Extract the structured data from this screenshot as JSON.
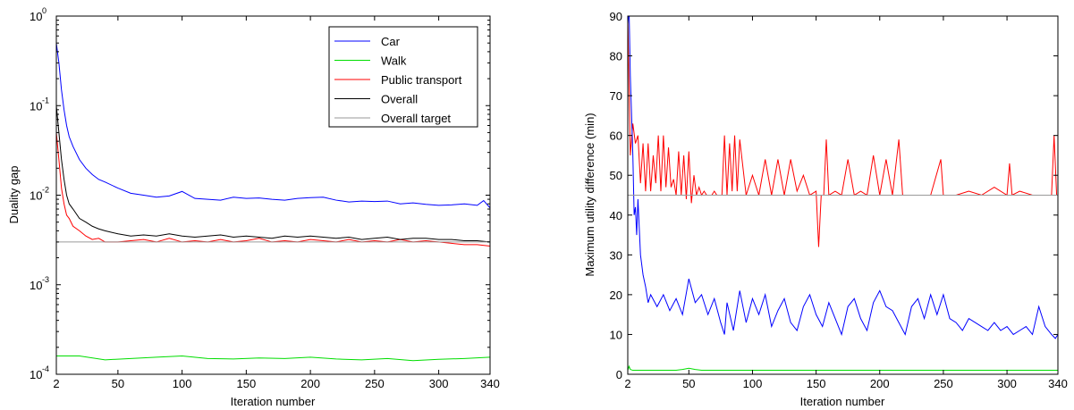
{
  "chart_data": [
    {
      "type": "line",
      "xlabel": "Iteration number",
      "ylabel": "Duality gap",
      "xlim": [
        2,
        340
      ],
      "ylim": [
        0.0001,
        1
      ],
      "yscale": "log",
      "xticks": [
        2,
        50,
        100,
        150,
        200,
        250,
        300,
        340
      ],
      "xtick_labels": [
        "2",
        "50",
        "100",
        "150",
        "200",
        "250",
        "300",
        "340"
      ],
      "yticks": [
        0.0001,
        0.001,
        0.01,
        0.1,
        1
      ],
      "ytick_labels": [
        "10",
        "10",
        "10",
        "10",
        "10"
      ],
      "ytick_exponents": [
        "-4",
        "-3",
        "-2",
        "-1",
        "0"
      ],
      "grid": false,
      "legend_position": "top-right",
      "series": [
        {
          "name": "Car",
          "color": "#0000ff",
          "x": [
            2,
            4,
            6,
            8,
            10,
            12,
            15,
            20,
            25,
            30,
            35,
            40,
            50,
            60,
            70,
            80,
            90,
            100,
            110,
            120,
            130,
            140,
            150,
            160,
            170,
            180,
            190,
            200,
            210,
            220,
            230,
            240,
            250,
            260,
            270,
            280,
            290,
            300,
            310,
            320,
            330,
            335,
            340
          ],
          "y": [
            0.5,
            0.3,
            0.15,
            0.09,
            0.06,
            0.045,
            0.035,
            0.025,
            0.02,
            0.017,
            0.015,
            0.014,
            0.012,
            0.0105,
            0.01,
            0.0095,
            0.0098,
            0.011,
            0.0092,
            0.009,
            0.0088,
            0.0095,
            0.0092,
            0.0093,
            0.009,
            0.0088,
            0.0092,
            0.0094,
            0.0095,
            0.0088,
            0.0084,
            0.0086,
            0.0085,
            0.0086,
            0.008,
            0.0082,
            0.0079,
            0.0077,
            0.0078,
            0.008,
            0.0077,
            0.0087,
            0.0072
          ]
        },
        {
          "name": "Walk",
          "color": "#00dd00",
          "x": [
            2,
            20,
            40,
            60,
            80,
            100,
            120,
            140,
            160,
            180,
            200,
            220,
            240,
            260,
            280,
            300,
            320,
            340
          ],
          "y": [
            0.00016,
            0.00016,
            0.000145,
            0.00015,
            0.000155,
            0.00016,
            0.00015,
            0.000148,
            0.000152,
            0.00015,
            0.000155,
            0.000148,
            0.000145,
            0.00015,
            0.000142,
            0.000147,
            0.00015,
            0.000155
          ]
        },
        {
          "name": "Public transport",
          "color": "#ff0000",
          "x": [
            2,
            4,
            6,
            8,
            10,
            12,
            15,
            20,
            25,
            30,
            35,
            40,
            50,
            60,
            70,
            80,
            90,
            100,
            110,
            120,
            130,
            140,
            150,
            160,
            170,
            180,
            190,
            200,
            210,
            220,
            230,
            240,
            250,
            260,
            270,
            280,
            290,
            300,
            310,
            320,
            330,
            340
          ],
          "y": [
            0.05,
            0.025,
            0.012,
            0.008,
            0.006,
            0.0055,
            0.0045,
            0.004,
            0.0035,
            0.0032,
            0.0033,
            0.003,
            0.003,
            0.0031,
            0.0032,
            0.003,
            0.0033,
            0.003,
            0.0031,
            0.003,
            0.0032,
            0.003,
            0.0031,
            0.0033,
            0.003,
            0.0031,
            0.003,
            0.0032,
            0.0031,
            0.003,
            0.0032,
            0.003,
            0.0031,
            0.003,
            0.0032,
            0.003,
            0.0031,
            0.003,
            0.0029,
            0.0028,
            0.0028,
            0.0027
          ]
        },
        {
          "name": "Overall",
          "color": "#000000",
          "x": [
            2,
            4,
            6,
            8,
            10,
            12,
            15,
            20,
            25,
            30,
            35,
            40,
            50,
            60,
            70,
            80,
            90,
            100,
            110,
            120,
            130,
            140,
            150,
            160,
            170,
            180,
            190,
            200,
            210,
            220,
            230,
            240,
            250,
            260,
            270,
            280,
            290,
            300,
            310,
            320,
            330,
            340
          ],
          "y": [
            0.1,
            0.05,
            0.025,
            0.015,
            0.01,
            0.008,
            0.007,
            0.0055,
            0.005,
            0.0045,
            0.0042,
            0.004,
            0.0037,
            0.0035,
            0.0036,
            0.0035,
            0.0037,
            0.0035,
            0.0034,
            0.0035,
            0.0036,
            0.0034,
            0.0035,
            0.0034,
            0.0033,
            0.0035,
            0.0034,
            0.0035,
            0.0034,
            0.0033,
            0.0034,
            0.0032,
            0.0033,
            0.0034,
            0.0032,
            0.0033,
            0.0033,
            0.0032,
            0.0032,
            0.0031,
            0.0031,
            0.003
          ]
        },
        {
          "name": "Overall target",
          "color": "#9a9a9a",
          "x": [
            2,
            340
          ],
          "y": [
            0.003,
            0.003
          ]
        }
      ]
    },
    {
      "type": "line",
      "xlabel": "Iteration number",
      "ylabel": "Maximum utility difference (min)",
      "xlim": [
        2,
        340
      ],
      "ylim": [
        0,
        90
      ],
      "xticks": [
        2,
        50,
        100,
        150,
        200,
        250,
        300,
        340
      ],
      "xtick_labels": [
        "2",
        "50",
        "100",
        "150",
        "200",
        "250",
        "300",
        "340"
      ],
      "yticks": [
        0,
        10,
        20,
        30,
        40,
        50,
        60,
        70,
        80,
        90
      ],
      "ytick_labels": [
        "0",
        "10",
        "20",
        "30",
        "40",
        "50",
        "60",
        "70",
        "80",
        "90"
      ],
      "grid": false,
      "series": [
        {
          "color": "#ff0000",
          "x": [
            2,
            4,
            6,
            8,
            10,
            12,
            14,
            16,
            18,
            20,
            22,
            24,
            26,
            28,
            30,
            32,
            34,
            36,
            38,
            40,
            42,
            44,
            46,
            48,
            50,
            52,
            54,
            56,
            58,
            60,
            62,
            64,
            66,
            68,
            70,
            72,
            74,
            76,
            78,
            80,
            82,
            84,
            86,
            88,
            90,
            95,
            100,
            105,
            110,
            115,
            120,
            125,
            130,
            135,
            140,
            145,
            150,
            152,
            154,
            156,
            158,
            160,
            165,
            170,
            175,
            180,
            185,
            190,
            195,
            200,
            205,
            210,
            215,
            218,
            220,
            230,
            240,
            248,
            250,
            252,
            260,
            270,
            280,
            290,
            300,
            302,
            304,
            310,
            320,
            330,
            335,
            337,
            339,
            340
          ],
          "y": [
            90,
            55,
            63,
            58,
            60,
            48,
            58,
            46,
            58,
            46,
            55,
            48,
            60,
            46,
            60,
            47,
            57,
            47,
            49,
            45,
            56,
            45,
            55,
            44,
            56,
            43,
            50,
            45,
            47,
            45,
            46,
            45,
            45,
            45,
            46,
            45,
            45,
            45,
            60,
            45,
            58,
            46,
            60,
            46,
            59,
            45,
            50,
            45,
            54,
            45,
            54,
            45,
            54,
            46,
            50,
            45,
            46,
            32,
            45,
            45,
            59,
            45,
            46,
            45,
            54,
            45,
            46,
            45,
            55,
            45,
            54,
            45,
            59,
            45,
            45,
            45,
            45,
            54,
            45,
            45,
            45,
            46,
            45,
            47,
            45,
            53,
            45,
            46,
            45,
            45,
            45,
            60,
            45,
            45
          ]
        },
        {
          "color": "#0000ff",
          "x": [
            2,
            3,
            4,
            5,
            6,
            7,
            8,
            9,
            10,
            12,
            14,
            16,
            18,
            20,
            25,
            30,
            35,
            40,
            45,
            50,
            55,
            60,
            65,
            70,
            75,
            78,
            80,
            85,
            90,
            95,
            100,
            105,
            110,
            115,
            120,
            125,
            130,
            135,
            140,
            145,
            150,
            155,
            160,
            165,
            170,
            175,
            180,
            185,
            190,
            195,
            200,
            205,
            210,
            215,
            220,
            225,
            230,
            235,
            240,
            245,
            250,
            255,
            260,
            265,
            270,
            275,
            280,
            285,
            290,
            295,
            300,
            305,
            310,
            315,
            320,
            325,
            330,
            335,
            338,
            340
          ],
          "y": [
            88,
            92,
            75,
            65,
            55,
            40,
            42,
            35,
            44,
            30,
            25,
            22,
            18,
            20,
            17,
            20,
            16,
            19,
            15,
            24,
            18,
            20,
            15,
            19,
            13,
            10,
            18,
            11,
            21,
            13,
            19,
            15,
            20,
            12,
            16,
            19,
            13,
            11,
            17,
            20,
            15,
            12,
            18,
            14,
            10,
            17,
            19,
            14,
            11,
            18,
            21,
            17,
            16,
            13,
            10,
            17,
            19,
            14,
            20,
            15,
            20,
            14,
            13,
            11,
            14,
            13,
            12,
            11,
            13,
            11,
            12,
            10,
            11,
            12,
            10,
            17,
            12,
            10,
            9,
            10
          ]
        },
        {
          "color": "#00dd00",
          "x": [
            2,
            3,
            4,
            6,
            10,
            20,
            40,
            45,
            50,
            55,
            60,
            80,
            100,
            150,
            200,
            250,
            300,
            340
          ],
          "y": [
            1,
            2,
            1.2,
            1,
            1,
            1,
            1,
            1.2,
            1.5,
            1.2,
            1,
            1,
            1,
            1,
            1,
            1,
            1,
            1
          ]
        },
        {
          "color": "#9a9a9a",
          "x": [
            2,
            340
          ],
          "y": [
            45,
            45
          ]
        }
      ]
    }
  ]
}
